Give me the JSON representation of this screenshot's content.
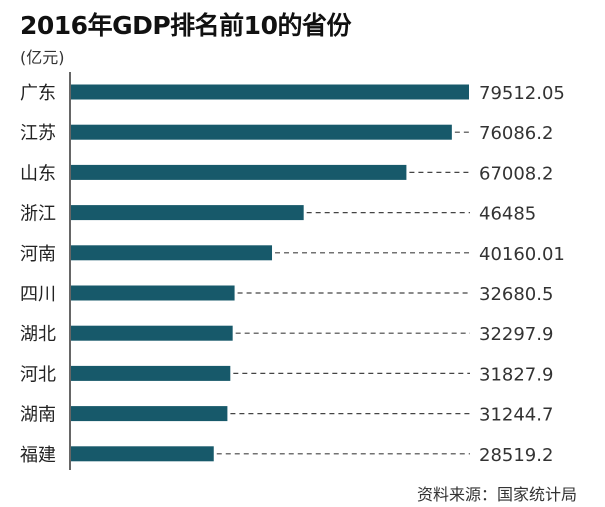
{
  "chart_data": {
    "type": "bar",
    "orientation": "horizontal",
    "title": "2016年GDP排名前10的省份",
    "unit": "(亿元)",
    "source": "资料来源：国家统计局",
    "categories": [
      "广东",
      "江苏",
      "山东",
      "浙江",
      "河南",
      "四川",
      "湖北",
      "河北",
      "湖南",
      "福建"
    ],
    "values": [
      79512.05,
      76086.2,
      67008.2,
      46485,
      40160.01,
      32680.5,
      32297.9,
      31827.9,
      31244.7,
      28519.2
    ],
    "value_labels": [
      "79512.05",
      "76086.2",
      "67008.2",
      "46485",
      "40160.01",
      "32680.5",
      "32297.9",
      "31827.9",
      "31244.7",
      "28519.2"
    ],
    "xlim": [
      0,
      79512.05
    ],
    "grid": false,
    "bar_color": "#17596a",
    "leader_lines": "dashed"
  }
}
